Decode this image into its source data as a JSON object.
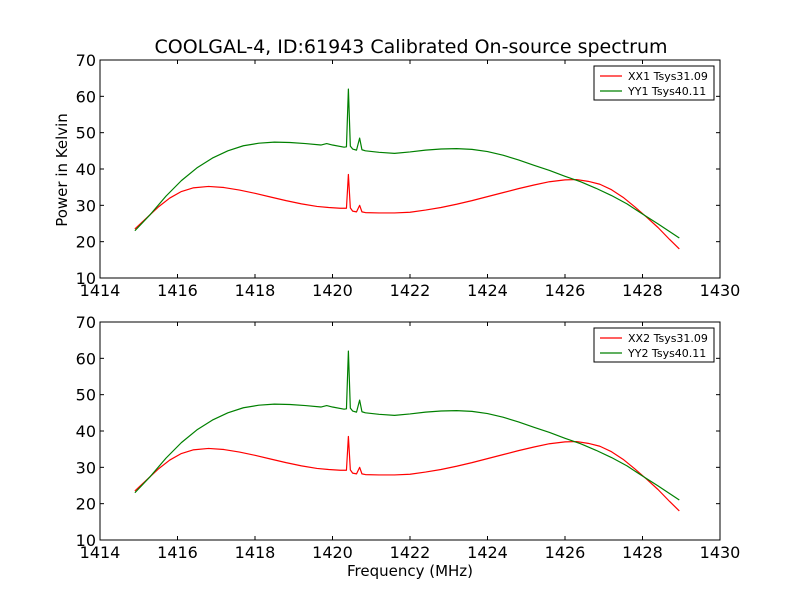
{
  "chart_data": {
    "type": "line",
    "title": "COOLGAL-4, ID:61943 Calibrated On-source spectrum",
    "xlabel": "Frequency (MHz)",
    "ylabel": "Power in Kelvin",
    "xlim": [
      1414,
      1430
    ],
    "ylim": [
      10,
      70
    ],
    "xticks": [
      1414,
      1416,
      1418,
      1420,
      1422,
      1424,
      1426,
      1428,
      1430
    ],
    "yticks": [
      10,
      20,
      30,
      40,
      50,
      60,
      70
    ],
    "colors": {
      "red": "#ff0000",
      "green": "#008000"
    },
    "panels": [
      {
        "legend": [
          "XX1 Tsys31.09",
          "YY1 Tsys40.11"
        ],
        "legend_position": "top-right",
        "series": [
          {
            "name": "XX1 Tsys31.09",
            "color": "#ff0000",
            "x": [
              1414.9,
              1415.2,
              1415.5,
              1415.8,
              1416.1,
              1416.4,
              1416.8,
              1417.2,
              1417.6,
              1418.0,
              1418.4,
              1418.8,
              1419.2,
              1419.6,
              1419.9,
              1420.2,
              1420.36,
              1420.41,
              1420.46,
              1420.52,
              1420.62,
              1420.7,
              1420.76,
              1420.85,
              1421.2,
              1421.6,
              1422.0,
              1422.4,
              1422.8,
              1423.2,
              1423.6,
              1424.0,
              1424.4,
              1424.8,
              1425.2,
              1425.6,
              1426.0,
              1426.3,
              1426.6,
              1426.9,
              1427.2,
              1427.5,
              1427.8,
              1428.1,
              1428.4,
              1428.7,
              1428.95
            ],
            "y": [
              23.5,
              26.5,
              29.5,
              32.0,
              33.8,
              34.8,
              35.2,
              34.9,
              34.2,
              33.3,
              32.3,
              31.3,
              30.4,
              29.7,
              29.4,
              29.2,
              29.2,
              38.5,
              29.3,
              28.4,
              28.2,
              30.0,
              28.2,
              28.0,
              27.9,
              27.9,
              28.1,
              28.7,
              29.4,
              30.3,
              31.3,
              32.4,
              33.5,
              34.6,
              35.6,
              36.5,
              37.0,
              37.1,
              36.6,
              35.8,
              34.3,
              32.2,
              29.6,
              26.8,
              23.9,
              20.6,
              18.0
            ]
          },
          {
            "name": "YY1 Tsys40.11",
            "color": "#008000",
            "x": [
              1414.9,
              1415.3,
              1415.7,
              1416.1,
              1416.5,
              1416.9,
              1417.3,
              1417.7,
              1418.1,
              1418.5,
              1418.9,
              1419.3,
              1419.7,
              1419.85,
              1420.0,
              1420.3,
              1420.36,
              1420.41,
              1420.46,
              1420.52,
              1420.62,
              1420.7,
              1420.76,
              1420.85,
              1421.2,
              1421.6,
              1422.0,
              1422.4,
              1422.8,
              1423.2,
              1423.6,
              1424.0,
              1424.4,
              1424.8,
              1425.2,
              1425.6,
              1426.0,
              1426.4,
              1426.8,
              1427.2,
              1427.6,
              1428.0,
              1428.4,
              1428.95
            ],
            "y": [
              23.0,
              27.5,
              32.5,
              36.8,
              40.3,
              43.0,
              45.0,
              46.4,
              47.1,
              47.4,
              47.3,
              47.0,
              46.6,
              47.0,
              46.6,
              46.0,
              46.1,
              62.0,
              46.3,
              45.5,
              45.2,
              48.5,
              45.3,
              45.0,
              44.6,
              44.3,
              44.7,
              45.2,
              45.5,
              45.6,
              45.4,
              44.8,
              43.8,
              42.5,
              41.0,
              39.6,
              38.0,
              36.5,
              34.7,
              32.7,
              30.4,
              27.6,
              24.9,
              21.0
            ]
          }
        ]
      },
      {
        "legend": [
          "XX2 Tsys31.09",
          "YY2 Tsys40.11"
        ],
        "legend_position": "top-right",
        "series": [
          {
            "name": "XX2 Tsys31.09",
            "color": "#ff0000",
            "x": [
              1414.9,
              1415.2,
              1415.5,
              1415.8,
              1416.1,
              1416.4,
              1416.8,
              1417.2,
              1417.6,
              1418.0,
              1418.4,
              1418.8,
              1419.2,
              1419.6,
              1419.9,
              1420.2,
              1420.36,
              1420.41,
              1420.46,
              1420.52,
              1420.62,
              1420.7,
              1420.76,
              1420.85,
              1421.2,
              1421.6,
              1422.0,
              1422.4,
              1422.8,
              1423.2,
              1423.6,
              1424.0,
              1424.4,
              1424.8,
              1425.2,
              1425.6,
              1426.0,
              1426.3,
              1426.6,
              1426.9,
              1427.2,
              1427.5,
              1427.8,
              1428.1,
              1428.4,
              1428.7,
              1428.95
            ],
            "y": [
              23.5,
              26.5,
              29.5,
              32.0,
              33.8,
              34.8,
              35.2,
              34.9,
              34.2,
              33.3,
              32.3,
              31.3,
              30.4,
              29.7,
              29.4,
              29.2,
              29.2,
              38.5,
              29.3,
              28.4,
              28.2,
              30.0,
              28.2,
              28.0,
              27.9,
              27.9,
              28.1,
              28.7,
              29.4,
              30.3,
              31.3,
              32.4,
              33.5,
              34.6,
              35.6,
              36.5,
              37.0,
              37.1,
              36.6,
              35.8,
              34.3,
              32.2,
              29.6,
              26.8,
              23.9,
              20.6,
              18.0
            ]
          },
          {
            "name": "YY2 Tsys40.11",
            "color": "#008000",
            "x": [
              1414.9,
              1415.3,
              1415.7,
              1416.1,
              1416.5,
              1416.9,
              1417.3,
              1417.7,
              1418.1,
              1418.5,
              1418.9,
              1419.3,
              1419.7,
              1419.85,
              1420.0,
              1420.3,
              1420.36,
              1420.41,
              1420.46,
              1420.52,
              1420.62,
              1420.7,
              1420.76,
              1420.85,
              1421.2,
              1421.6,
              1422.0,
              1422.4,
              1422.8,
              1423.2,
              1423.6,
              1424.0,
              1424.4,
              1424.8,
              1425.2,
              1425.6,
              1426.0,
              1426.4,
              1426.8,
              1427.2,
              1427.6,
              1428.0,
              1428.4,
              1428.95
            ],
            "y": [
              23.0,
              27.5,
              32.5,
              36.8,
              40.3,
              43.0,
              45.0,
              46.4,
              47.1,
              47.4,
              47.3,
              47.0,
              46.6,
              47.0,
              46.6,
              46.0,
              46.1,
              62.0,
              46.3,
              45.5,
              45.2,
              48.5,
              45.3,
              45.0,
              44.6,
              44.3,
              44.7,
              45.2,
              45.5,
              45.6,
              45.4,
              44.8,
              43.8,
              42.5,
              41.0,
              39.6,
              38.0,
              36.5,
              34.7,
              32.7,
              30.4,
              27.6,
              24.9,
              21.0
            ]
          }
        ]
      }
    ]
  }
}
